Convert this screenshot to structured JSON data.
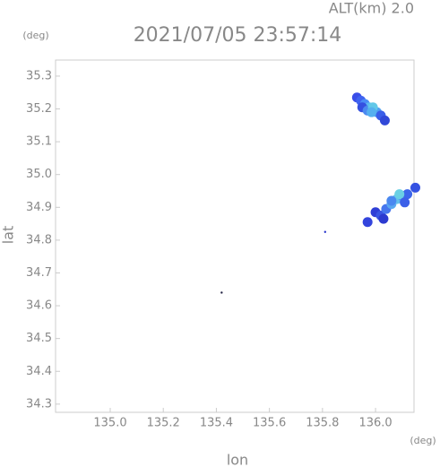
{
  "chart_data": {
    "type": "scatter",
    "title": "2021/07/05 23:57:14",
    "altitude_label": "ALT(km) 2.0",
    "ylabel": "lat",
    "xlabel": "lon",
    "y_unit": "(deg)",
    "x_unit": "(deg)",
    "x": [
      135.93,
      135.945,
      135.96,
      135.975,
      135.99,
      136.005,
      136.02,
      136.035,
      135.95,
      135.97,
      135.99,
      135.985,
      135.97,
      136.0,
      136.02,
      136.04,
      136.06,
      136.08,
      136.1,
      136.12,
      136.15,
      136.03,
      136.06,
      136.09,
      136.11,
      135.81,
      135.42
    ],
    "y": [
      35.235,
      35.225,
      35.215,
      35.205,
      35.195,
      35.19,
      35.18,
      35.165,
      35.205,
      35.195,
      35.205,
      35.19,
      34.855,
      34.885,
      34.875,
      34.895,
      34.91,
      34.925,
      34.935,
      34.94,
      34.96,
      34.865,
      34.92,
      34.94,
      34.915,
      34.825,
      34.64
    ],
    "colors": [
      "#3a4ee8",
      "#3f63f0",
      "#4a8cf5",
      "#5ab8f0",
      "#7ae6d6",
      "#4fa0f2",
      "#3a5ee8",
      "#3148d8",
      "#3550e0",
      "#4c8af0",
      "#62c8e8",
      "#55b0ef",
      "#3344dd",
      "#2f3fd6",
      "#3a55e2",
      "#4676ee",
      "#5aa8f0",
      "#64c0ec",
      "#4e96f2",
      "#3c66ea",
      "#3552e2",
      "#2c3ad0",
      "#4a88f0",
      "#6ad0e4",
      "#3c60e8",
      "#2a38cc",
      "#222244"
    ],
    "xlim": [
      134.794,
      136.145
    ],
    "ylim": [
      34.275,
      35.349
    ],
    "xticks": [
      {
        "value": 135.0,
        "label": "135.0"
      },
      135.2,
      135.4,
      135.6,
      135.8,
      {
        "value": 136.0,
        "label": "136.0"
      }
    ],
    "yticks": [
      34.3,
      34.4,
      34.5,
      34.6,
      34.7,
      34.8,
      34.9,
      {
        "value": 35.0,
        "label": "35.0"
      },
      35.1,
      35.2,
      35.3
    ]
  }
}
